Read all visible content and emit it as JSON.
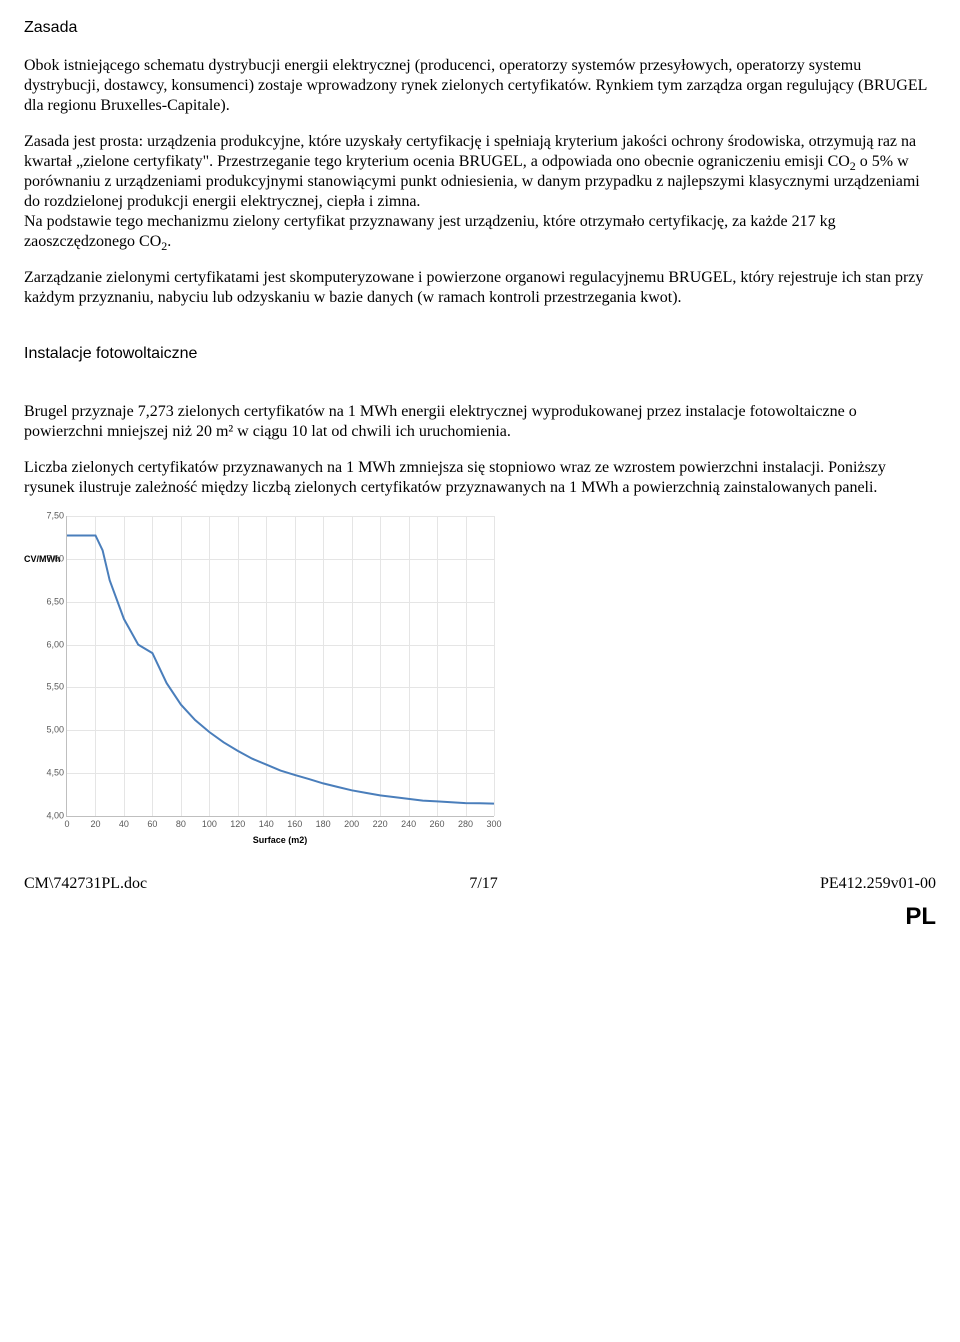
{
  "headings": {
    "h1": "Zasada",
    "h2": "Instalacje fotowoltaiczne"
  },
  "paragraphs": {
    "p1": "Obok istniejącego schematu dystrybucji energii elektrycznej (producenci, operatorzy systemów przesyłowych, operatorzy systemu dystrybucji, dostawcy, konsumenci) zostaje wprowadzony rynek zielonych certyfikatów. Rynkiem tym zarządza organ regulujący (BRUGEL dla regionu Bruxelles-Capitale).",
    "p2a": "Zasada jest prosta: urządzenia produkcyjne, które uzyskały certyfikację i spełniają kryterium jakości ochrony środowiska, otrzymują raz na kwartał „zielone certyfikaty\". Przestrzeganie tego kryterium ocenia BRUGEL, a odpowiada ono obecnie ograniczeniu emisji CO",
    "p2b": " o 5% w porównaniu z urządzeniami produkcyjnymi stanowiącymi punkt odniesienia, w danym przypadku z najlepszymi klasycznymi urządzeniami do rozdzielonej produkcji energii elektrycznej, ciepła i zimna.",
    "p3a": "Na podstawie tego mechanizmu zielony certyfikat przyznawany jest urządzeniu, które otrzymało certyfikację, za każde 217 kg zaoszczędzonego CO",
    "p3b": ".",
    "p4": "Zarządzanie zielonymi certyfikatami jest skomputeryzowane i powierzone organowi regulacyjnemu BRUGEL, który rejestruje ich stan przy każdym przyznaniu, nabyciu lub odzyskaniu w bazie danych (w ramach kontroli przestrzegania kwot).",
    "p5": "Brugel przyznaje 7,273 zielonych certyfikatów na 1 MWh energii elektrycznej wyprodukowanej przez instalacje fotowoltaiczne o powierzchni mniejszej niż 20 m² w ciągu 10 lat od chwili ich uruchomienia.",
    "p6": "Liczba zielonych certyfikatów przyznawanych na 1 MWh zmniejsza się stopniowo wraz ze wzrostem powierzchni instalacji. Poniższy rysunek ilustruje zależność między liczbą zielonych certyfikatów przyznawanych na 1 MWh a powierzchnią zainstalowanych paneli.",
    "sub2": "2"
  },
  "chart": {
    "type": "line",
    "y_axis_label": "CV/MWh",
    "x_axis_label": "Surface (m2)",
    "xlim": [
      0,
      300
    ],
    "ylim": [
      4.0,
      7.5
    ],
    "xtick_step": 20,
    "ytick_step": 0.5,
    "xtick_labels": [
      "0",
      "20",
      "40",
      "60",
      "80",
      "100",
      "120",
      "140",
      "160",
      "180",
      "200",
      "220",
      "240",
      "260",
      "280",
      "300"
    ],
    "ytick_labels": [
      "4,00",
      "4,50",
      "5,00",
      "5,50",
      "6,00",
      "6,50",
      "7,00",
      "7,50"
    ],
    "line_color": "#4a7ebb",
    "line_width": 2,
    "grid_color": "#e5e5e5",
    "background_color": "#ffffff",
    "axis_color": "#bfbfbf",
    "tick_font_size": 9,
    "label_font_size": 9,
    "points_x": [
      0,
      20,
      25,
      30,
      40,
      50,
      60,
      70,
      80,
      90,
      100,
      110,
      120,
      130,
      140,
      150,
      160,
      170,
      180,
      190,
      200,
      210,
      220,
      230,
      240,
      250,
      260,
      270,
      280,
      290,
      300
    ],
    "points_y": [
      7.273,
      7.273,
      7.1,
      6.75,
      6.3,
      6.0,
      5.9,
      5.55,
      5.3,
      5.12,
      4.98,
      4.86,
      4.76,
      4.67,
      4.6,
      4.53,
      4.48,
      4.43,
      4.38,
      4.34,
      4.3,
      4.27,
      4.24,
      4.22,
      4.2,
      4.18,
      4.17,
      4.16,
      4.15,
      4.148,
      4.145
    ]
  },
  "footer": {
    "left": "CM\\742731PL.doc",
    "center": "7/17",
    "right": "PE412.259v01-00",
    "lang": "PL"
  }
}
